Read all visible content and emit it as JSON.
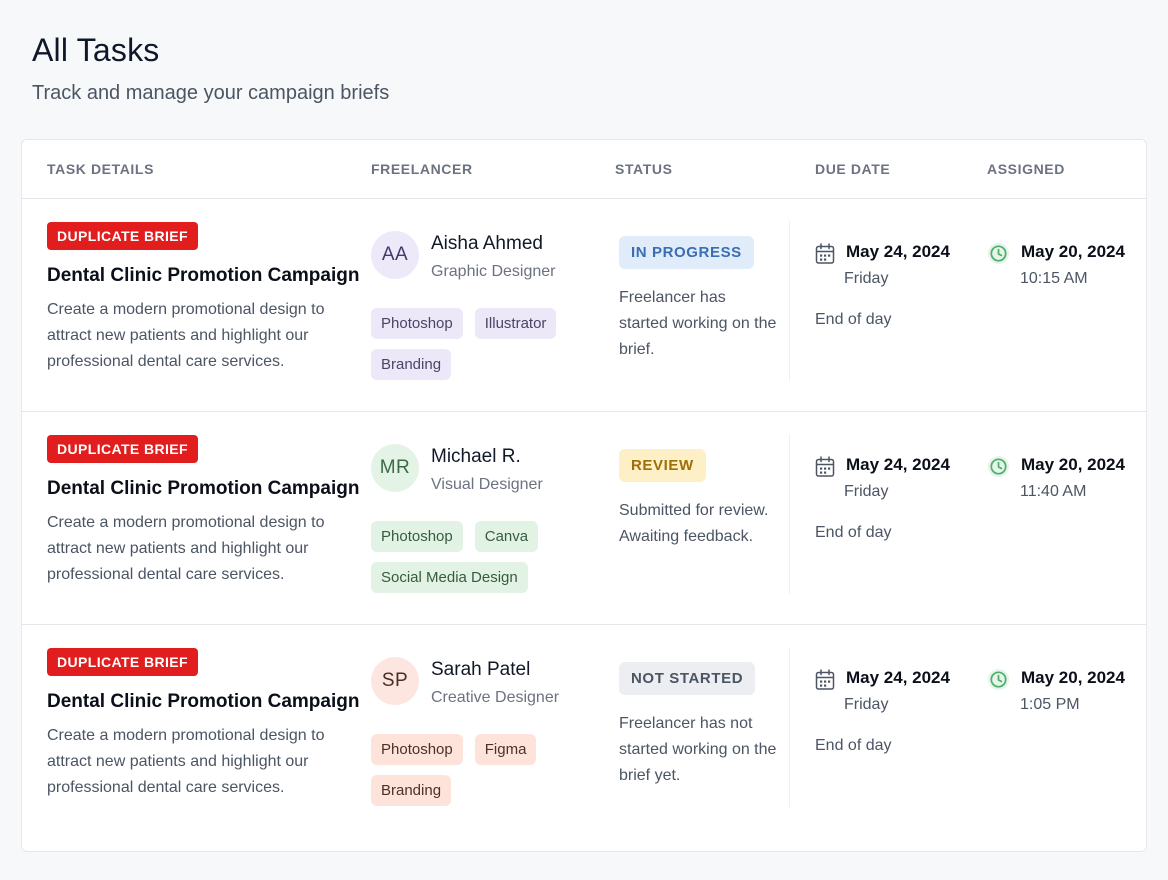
{
  "header": {
    "title": "All Tasks",
    "subtitle": "Track and manage your campaign briefs"
  },
  "table": {
    "columns": [
      "TASK DETAILS",
      "FREELANCER",
      "STATUS",
      "DUE DATE",
      "ASSIGNED"
    ],
    "rows": [
      {
        "badge": "DUPLICATE BRIEF",
        "title": "Dental Clinic Promotion Campaign",
        "description": "Create a modern promotional design to attract new patients and highlight our professional dental care services.",
        "freelancer": {
          "initials": "AA",
          "name": "Aisha Ahmed",
          "role": "Graphic Designer",
          "skills": [
            "Photoshop",
            "Illustrator",
            "Branding"
          ]
        },
        "status": {
          "label": "IN PROGRESS",
          "text": "Freelancer has started working on the brief."
        },
        "due": {
          "date": "May 24, 2024",
          "day": "Friday",
          "note": "End of day"
        },
        "assigned": {
          "date": "May 20, 2024",
          "time": "10:15 AM"
        }
      },
      {
        "badge": "DUPLICATE BRIEF",
        "title": "Dental Clinic Promotion Campaign",
        "description": "Create a modern promotional design to attract new patients and highlight our professional dental care services.",
        "freelancer": {
          "initials": "MR",
          "name": "Michael R.",
          "role": "Visual Designer",
          "skills": [
            "Photoshop",
            "Canva",
            "Social Media Design"
          ]
        },
        "status": {
          "label": "REVIEW",
          "text": "Submitted for review. Awaiting feedback."
        },
        "due": {
          "date": "May 24, 2024",
          "day": "Friday",
          "note": "End of day"
        },
        "assigned": {
          "date": "May 20, 2024",
          "time": "11:40 AM"
        }
      },
      {
        "badge": "DUPLICATE BRIEF",
        "title": "Dental Clinic Promotion Campaign",
        "description": "Create a modern promotional design to attract new patients and highlight our professional dental care services.",
        "freelancer": {
          "initials": "SP",
          "name": "Sarah Patel",
          "role": "Creative Designer",
          "skills": [
            "Photoshop",
            "Figma",
            "Branding"
          ]
        },
        "status": {
          "label": "NOT STARTED",
          "text": "Freelancer has not started working on the brief yet."
        },
        "due": {
          "date": "May 24, 2024",
          "day": "Friday",
          "note": "End of day"
        },
        "assigned": {
          "date": "May 20, 2024",
          "time": "1:05 PM"
        }
      }
    ]
  },
  "colors": {
    "duplicate_badge": "#e11d1d",
    "in_progress": "#3a6db2",
    "review": "#a06d07",
    "not_started": "#4b5563",
    "clock_icon": "#4caf6a"
  },
  "icons": {
    "due": "calendar-icon",
    "assigned": "clock-icon"
  }
}
